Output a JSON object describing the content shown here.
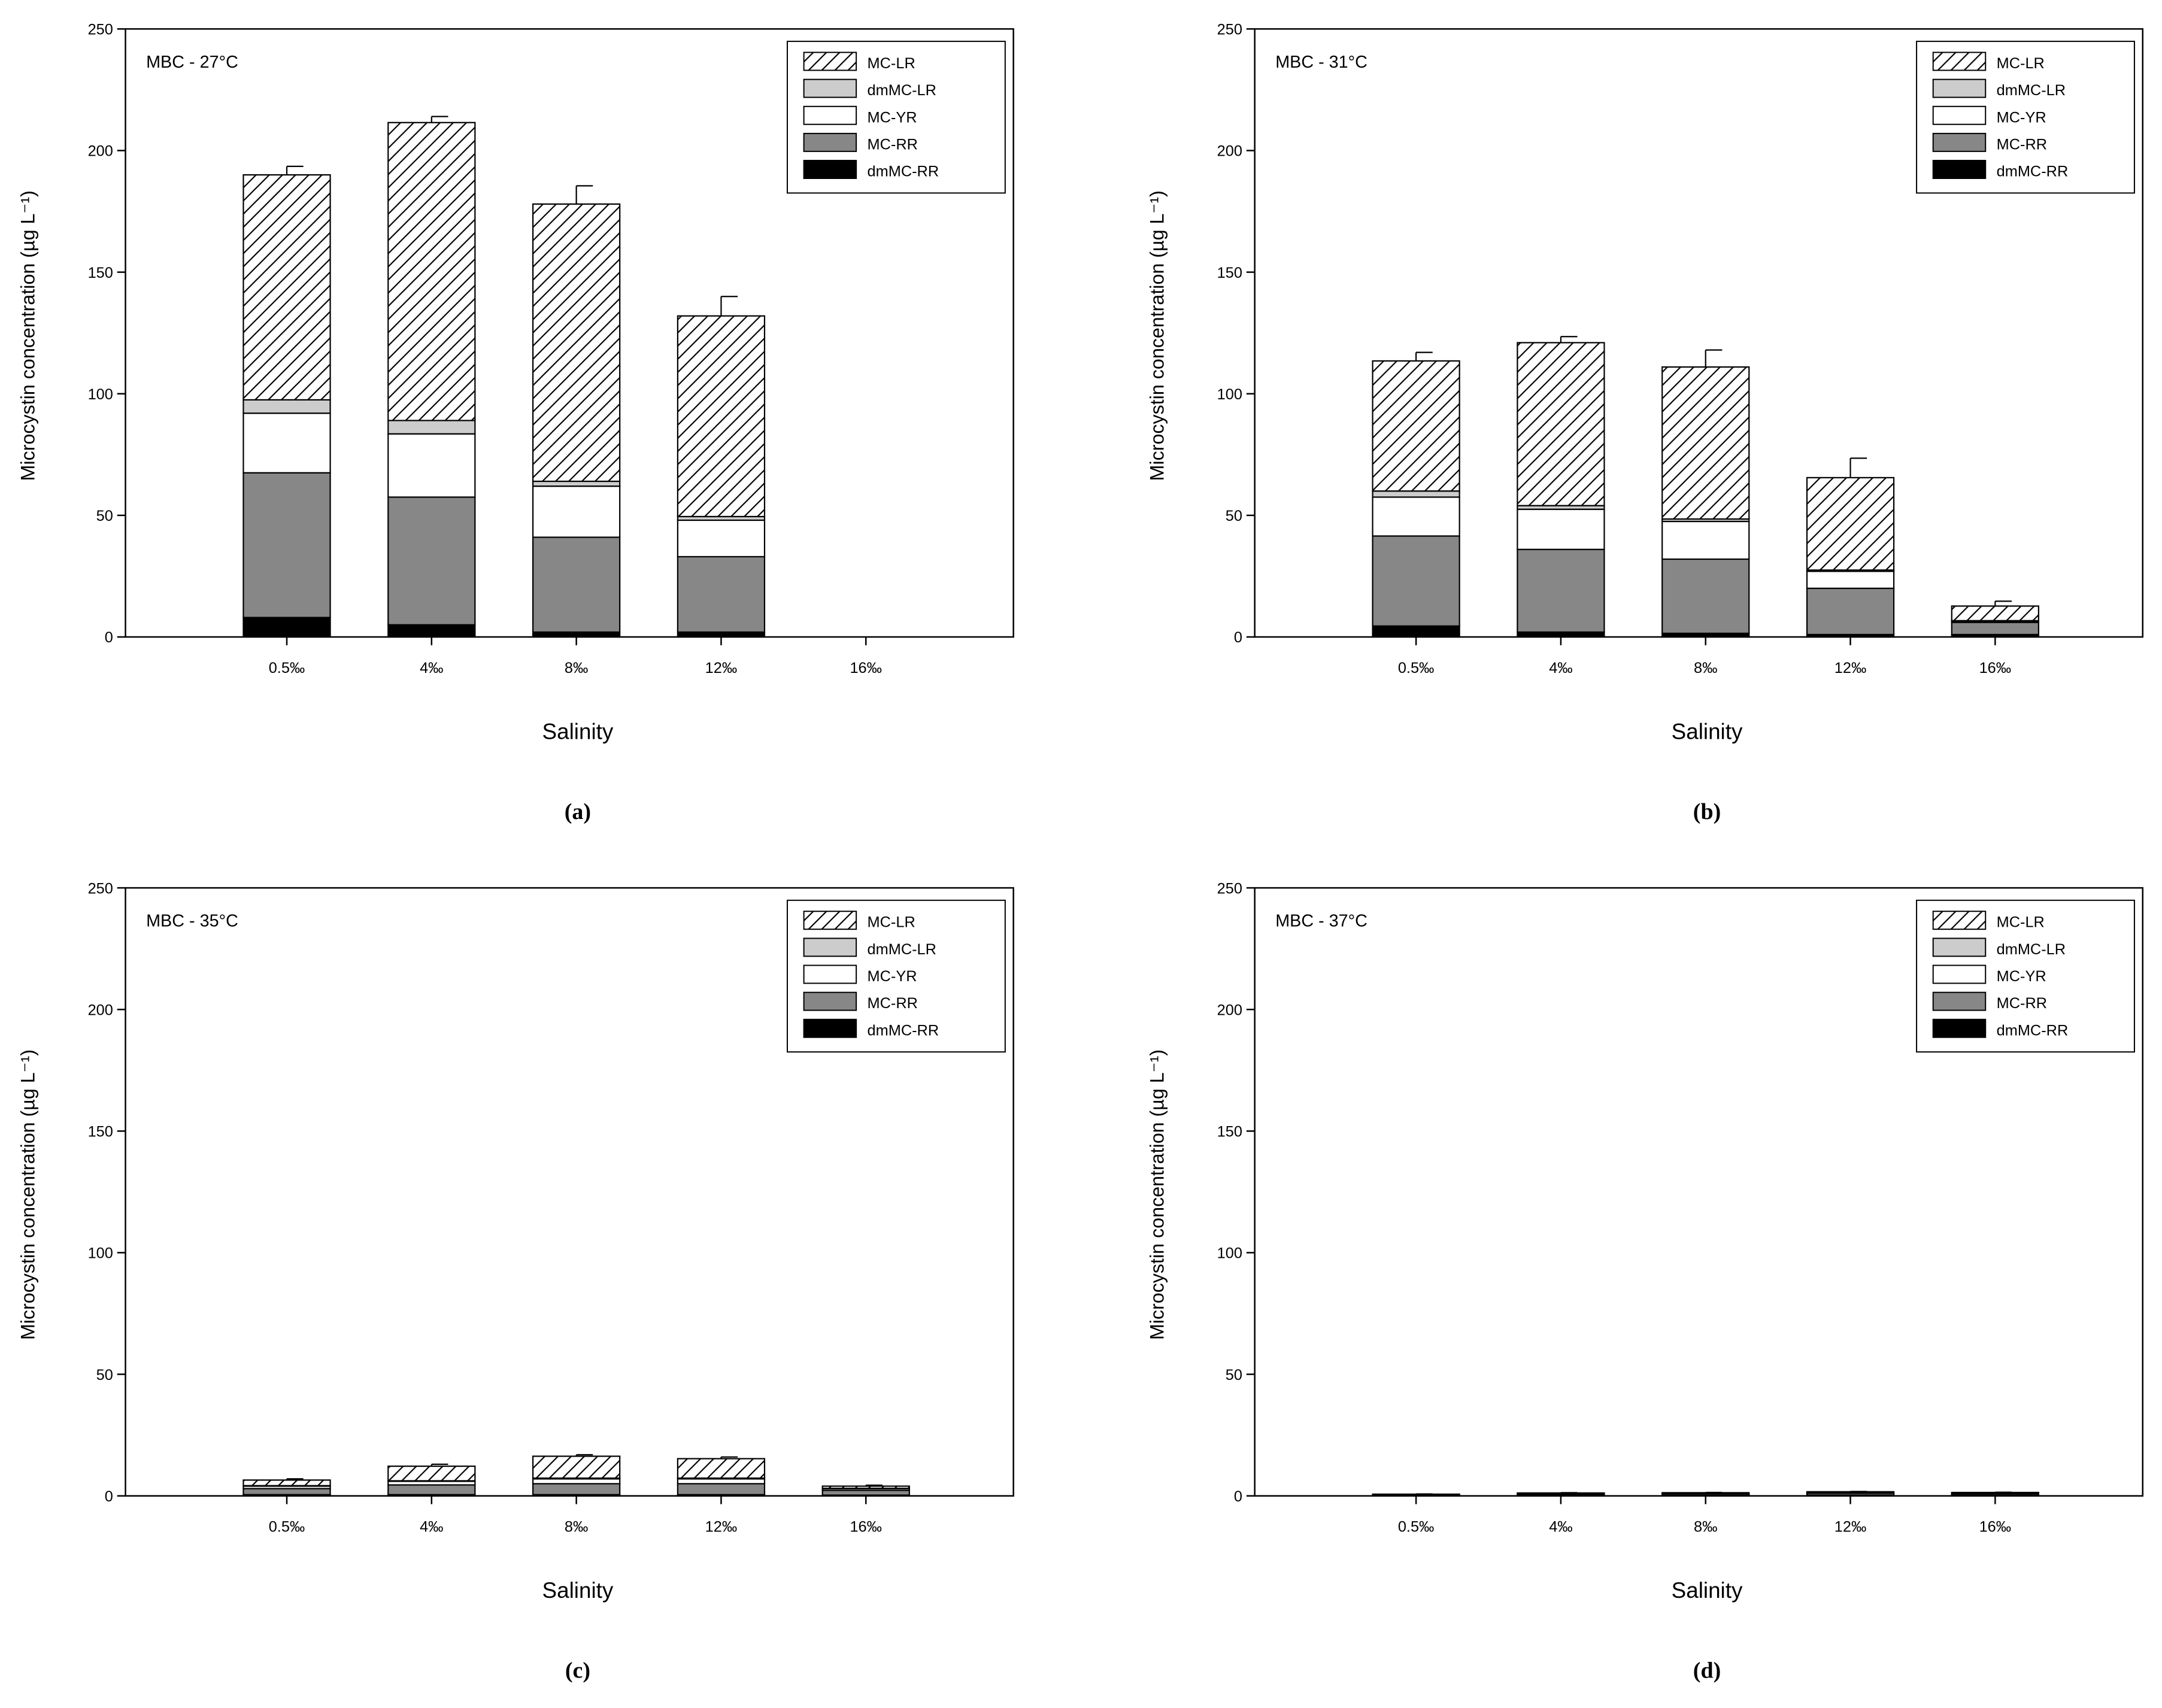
{
  "figure": {
    "subplot_labels": [
      "(a)",
      "(b)",
      "(c)",
      "(d)"
    ]
  },
  "colors": {
    "dmMC-RR": "#000000",
    "MC-RR": "#878787",
    "MC-YR": "#ffffff",
    "dmMC-LR": "#cccccc",
    "MC-LR": "hatch"
  },
  "chart_data": [
    {
      "type": "bar",
      "stacked": true,
      "title": "MBC - 27°C",
      "xlabel": "Salinity",
      "ylabel": "Microcystin concentration (µg L⁻¹)",
      "ylim": [
        0,
        250
      ],
      "yticks": [
        0,
        50,
        100,
        150,
        200,
        250
      ],
      "categories": [
        "0.5‰",
        "4‰",
        "8‰",
        "12‰",
        "16‰"
      ],
      "legend_position": "top-right",
      "legend_order": [
        "MC-LR",
        "dmMC-LR",
        "MC-YR",
        "MC-RR",
        "dmMC-RR"
      ],
      "series": [
        {
          "name": "dmMC-RR",
          "values": [
            8,
            5,
            2,
            2,
            0
          ],
          "errors": [
            0.8,
            0.6,
            0.3,
            0.3,
            0
          ]
        },
        {
          "name": "MC-RR",
          "values": [
            59.5,
            52.5,
            39,
            31,
            0
          ],
          "errors": [
            3.5,
            0.7,
            1.5,
            1.2,
            0
          ]
        },
        {
          "name": "MC-YR",
          "values": [
            24.5,
            26,
            21,
            15,
            0
          ],
          "errors": [
            1.2,
            0.8,
            1.0,
            0.5,
            0
          ]
        },
        {
          "name": "dmMC-LR",
          "values": [
            5.5,
            5.5,
            2,
            1.5,
            0
          ],
          "errors": [
            0,
            0,
            0,
            0,
            0
          ]
        },
        {
          "name": "MC-LR",
          "values": [
            92.5,
            122.5,
            114,
            82.5,
            0
          ],
          "errors": [
            3.5,
            2.5,
            7.5,
            8,
            0
          ]
        }
      ]
    },
    {
      "type": "bar",
      "stacked": true,
      "title": "MBC - 31°C",
      "xlabel": "Salinity",
      "ylabel": "Microcystin concentration (µg L⁻¹)",
      "ylim": [
        0,
        250
      ],
      "yticks": [
        0,
        50,
        100,
        150,
        200,
        250
      ],
      "categories": [
        "0.5‰",
        "4‰",
        "8‰",
        "12‰",
        "16‰"
      ],
      "legend_position": "top-right",
      "legend_order": [
        "MC-LR",
        "dmMC-LR",
        "MC-YR",
        "MC-RR",
        "dmMC-RR"
      ],
      "series": [
        {
          "name": "dmMC-RR",
          "values": [
            4.5,
            2,
            1.5,
            1,
            1
          ],
          "errors": [
            0.8,
            0.3,
            0.2,
            0.2,
            0.2
          ]
        },
        {
          "name": "MC-RR",
          "values": [
            37,
            34,
            30.5,
            19,
            5
          ],
          "errors": [
            3.5,
            0.8,
            1.5,
            1.0,
            0.5
          ]
        },
        {
          "name": "MC-YR",
          "values": [
            16,
            16.5,
            15.5,
            7,
            0.5
          ],
          "errors": [
            0.8,
            0.8,
            0.5,
            0.5,
            0
          ]
        },
        {
          "name": "dmMC-LR",
          "values": [
            2.5,
            1.5,
            1,
            0.5,
            0.2
          ],
          "errors": [
            0,
            0,
            0,
            0,
            0
          ]
        },
        {
          "name": "MC-LR",
          "values": [
            53.5,
            67,
            62.5,
            38,
            6
          ],
          "errors": [
            3.5,
            2.5,
            7,
            8,
            2
          ]
        }
      ]
    },
    {
      "type": "bar",
      "stacked": true,
      "title": "MBC - 35°C",
      "xlabel": "Salinity",
      "ylabel": "Microcystin concentration (µg L⁻¹)",
      "ylim": [
        0,
        250
      ],
      "yticks": [
        0,
        50,
        100,
        150,
        200,
        250
      ],
      "categories": [
        "0.5‰",
        "4‰",
        "8‰",
        "12‰",
        "16‰"
      ],
      "legend_position": "top-right",
      "legend_order": [
        "MC-LR",
        "dmMC-LR",
        "MC-YR",
        "MC-RR",
        "dmMC-RR"
      ],
      "series": [
        {
          "name": "dmMC-RR",
          "values": [
            0.5,
            0.5,
            0.5,
            0.5,
            0.3
          ],
          "errors": [
            0.1,
            0.1,
            0.1,
            0.1,
            0.1
          ]
        },
        {
          "name": "MC-RR",
          "values": [
            2.5,
            4,
            4.5,
            4.5,
            2
          ],
          "errors": [
            0.3,
            0.3,
            0.3,
            0.3,
            0.2
          ]
        },
        {
          "name": "MC-YR",
          "values": [
            1,
            1.5,
            2,
            2,
            0.7
          ],
          "errors": [
            0.1,
            0.2,
            0.2,
            0.2,
            0.1
          ]
        },
        {
          "name": "dmMC-LR",
          "values": [
            0.2,
            0.2,
            0.3,
            0.3,
            0.1
          ],
          "errors": [
            0,
            0,
            0,
            0,
            0
          ]
        },
        {
          "name": "MC-LR",
          "values": [
            2.3,
            6,
            9,
            8,
            0.9
          ],
          "errors": [
            0.5,
            0.8,
            0.6,
            0.7,
            0.4
          ]
        }
      ]
    },
    {
      "type": "bar",
      "stacked": true,
      "title": "MBC - 37°C",
      "xlabel": "Salinity",
      "ylabel": "Microcystin concentration (µg L⁻¹)",
      "ylim": [
        0,
        250
      ],
      "yticks": [
        0,
        50,
        100,
        150,
        200,
        250
      ],
      "categories": [
        "0.5‰",
        "4‰",
        "8‰",
        "12‰",
        "16‰"
      ],
      "legend_position": "top-right",
      "legend_order": [
        "MC-LR",
        "dmMC-LR",
        "MC-YR",
        "MC-RR",
        "dmMC-RR"
      ],
      "series": [
        {
          "name": "dmMC-RR",
          "values": [
            0.3,
            0.3,
            0.3,
            0.3,
            0.3
          ],
          "errors": [
            0.05,
            0.05,
            0.05,
            0.05,
            0.05
          ]
        },
        {
          "name": "MC-RR",
          "values": [
            0.2,
            0.5,
            0.6,
            0.8,
            0.6
          ],
          "errors": [
            0.1,
            0.1,
            0.1,
            0.1,
            0.1
          ]
        },
        {
          "name": "MC-YR",
          "values": [
            0,
            0.1,
            0.1,
            0.1,
            0.1
          ],
          "errors": [
            0,
            0,
            0,
            0,
            0
          ]
        },
        {
          "name": "dmMC-LR",
          "values": [
            0,
            0,
            0,
            0,
            0
          ],
          "errors": [
            0,
            0,
            0,
            0,
            0
          ]
        },
        {
          "name": "MC-LR",
          "values": [
            0.2,
            0.3,
            0.3,
            0.5,
            0.4
          ],
          "errors": [
            0.1,
            0.1,
            0.1,
            0.1,
            0.1
          ]
        }
      ]
    }
  ]
}
